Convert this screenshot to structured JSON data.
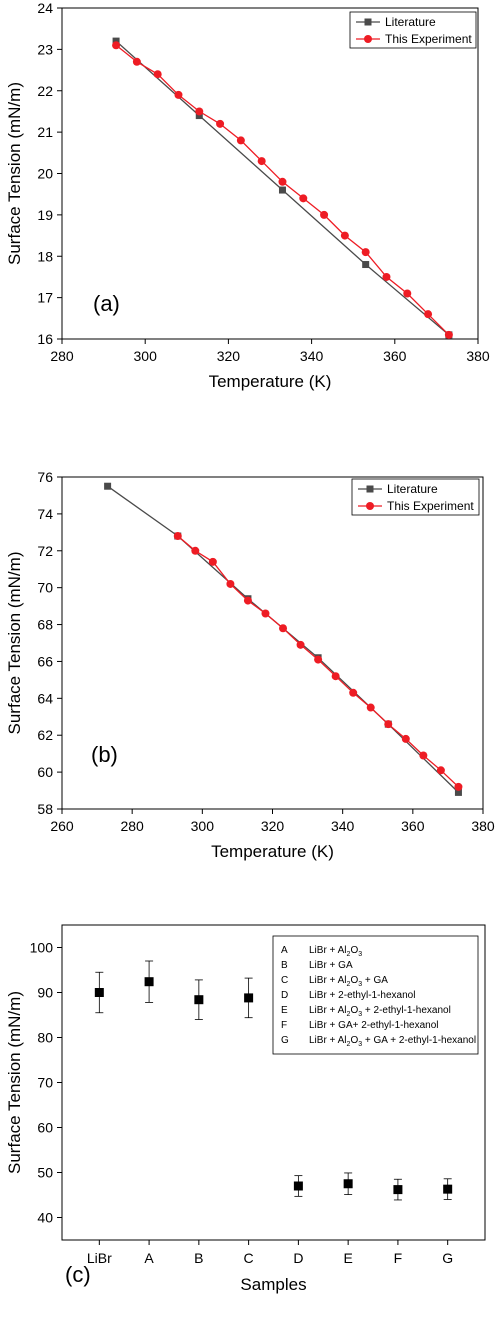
{
  "chart_data": [
    {
      "type": "line",
      "panel_label": "(a)",
      "xlabel": "Temperature (K)",
      "ylabel": "Surface Tension (mN/m)",
      "xlim": [
        280,
        380
      ],
      "ylim": [
        16,
        24
      ],
      "xticks": [
        280,
        300,
        320,
        340,
        360,
        380
      ],
      "yticks": [
        16,
        17,
        18,
        19,
        20,
        21,
        22,
        23,
        24
      ],
      "grid": false,
      "legend_position": "top-right",
      "series": [
        {
          "name": "Literature",
          "color": "#4a4a4a",
          "marker": "square",
          "x": [
            293,
            313,
            333,
            353,
            373
          ],
          "y": [
            23.2,
            21.4,
            19.6,
            17.8,
            16.1
          ]
        },
        {
          "name": "This Experiment",
          "color": "#ee1c24",
          "marker": "circle",
          "x": [
            293,
            298,
            303,
            308,
            313,
            318,
            323,
            328,
            333,
            338,
            343,
            348,
            353,
            358,
            363,
            368,
            373
          ],
          "y": [
            23.1,
            22.7,
            22.4,
            21.9,
            21.5,
            21.2,
            20.8,
            20.3,
            19.8,
            19.4,
            19.0,
            18.5,
            18.1,
            17.5,
            17.1,
            16.6,
            16.1
          ]
        }
      ]
    },
    {
      "type": "line",
      "panel_label": "(b)",
      "xlabel": "Temperature (K)",
      "ylabel": "Surface Tension (mN/m)",
      "xlim": [
        260,
        380
      ],
      "ylim": [
        58,
        76
      ],
      "xticks": [
        260,
        280,
        300,
        320,
        340,
        360,
        380
      ],
      "yticks": [
        58,
        60,
        62,
        64,
        66,
        68,
        70,
        72,
        74,
        76
      ],
      "grid": false,
      "legend_position": "top-right",
      "series": [
        {
          "name": "Literature",
          "color": "#4a4a4a",
          "marker": "square",
          "x": [
            273,
            293,
            313,
            333,
            353,
            373
          ],
          "y": [
            75.5,
            72.8,
            69.4,
            66.2,
            62.6,
            58.9
          ]
        },
        {
          "name": "This Experiment",
          "color": "#ee1c24",
          "marker": "circle",
          "x": [
            293,
            298,
            303,
            308,
            313,
            318,
            323,
            328,
            333,
            338,
            343,
            348,
            353,
            358,
            363,
            368,
            373
          ],
          "y": [
            72.8,
            72.0,
            71.4,
            70.2,
            69.3,
            68.6,
            67.8,
            66.9,
            66.1,
            65.2,
            64.3,
            63.5,
            62.6,
            61.8,
            60.9,
            60.1,
            59.2
          ]
        }
      ]
    },
    {
      "type": "scatter",
      "panel_label": "(c)",
      "xlabel": "Samples",
      "ylabel": "Surface Tension (mN/m)",
      "ylim": [
        35,
        105
      ],
      "yticks": [
        40,
        50,
        60,
        70,
        80,
        90,
        100
      ],
      "grid": false,
      "legend_position": "top-right",
      "categories": [
        "LiBr",
        "A",
        "B",
        "C",
        "D",
        "E",
        "F",
        "G"
      ],
      "values": [
        90.0,
        92.4,
        88.4,
        88.8,
        47.0,
        47.5,
        46.2,
        46.3
      ],
      "errors": [
        4.5,
        4.6,
        4.4,
        4.4,
        2.3,
        2.4,
        2.3,
        2.3
      ],
      "color": "#000000",
      "legend": [
        {
          "code": "A",
          "parts": [
            [
              "LiBr + Al",
              ""
            ],
            [
              "2",
              "sub"
            ],
            [
              "O",
              ""
            ],
            [
              "3",
              "sub"
            ]
          ]
        },
        {
          "code": "B",
          "parts": [
            [
              "LiBr + GA",
              ""
            ]
          ]
        },
        {
          "code": "C",
          "parts": [
            [
              "LiBr + Al",
              ""
            ],
            [
              "2",
              "sub"
            ],
            [
              "O",
              ""
            ],
            [
              "3",
              "sub"
            ],
            [
              " + GA",
              ""
            ]
          ]
        },
        {
          "code": "D",
          "parts": [
            [
              "LiBr + 2-ethyl-1-hexanol",
              ""
            ]
          ]
        },
        {
          "code": "E",
          "parts": [
            [
              "LiBr + Al",
              ""
            ],
            [
              "2",
              "sub"
            ],
            [
              "O",
              ""
            ],
            [
              "3",
              "sub"
            ],
            [
              " + 2-ethyl-1-hexanol",
              ""
            ]
          ]
        },
        {
          "code": "F",
          "parts": [
            [
              "LiBr + GA+ 2-ethyl-1-hexanol",
              ""
            ]
          ]
        },
        {
          "code": "G",
          "parts": [
            [
              "LiBr + Al",
              ""
            ],
            [
              "2",
              "sub"
            ],
            [
              "O",
              ""
            ],
            [
              "3",
              "sub"
            ],
            [
              " + GA + 2-ethyl-1-hexanol",
              ""
            ]
          ]
        }
      ]
    }
  ]
}
